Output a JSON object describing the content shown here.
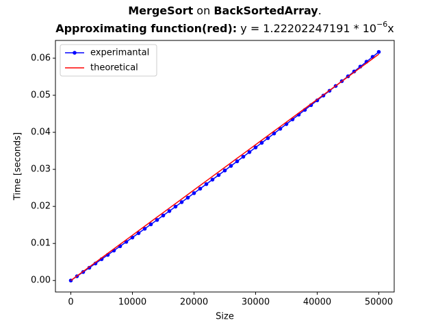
{
  "chart_data": {
    "type": "line",
    "title": [
      {
        "text": "MergeSort",
        "bold": true
      },
      {
        "text": " on "
      },
      {
        "text": "BackSortedArray",
        "bold": true
      },
      {
        "text": "."
      }
    ],
    "subtitle": [
      {
        "text": "Approximating function(red):",
        "bold": true
      },
      {
        "text": " y = 1.22202247191 * 10"
      },
      {
        "text": "−6",
        "sup": true
      },
      {
        "text": "x"
      }
    ],
    "xlabel": "Size",
    "ylabel": "Time [seconds]",
    "x": [
      0,
      1000,
      2000,
      3000,
      4000,
      5000,
      6000,
      7000,
      8000,
      9000,
      10000,
      11000,
      12000,
      13000,
      14000,
      15000,
      16000,
      17000,
      18000,
      19000,
      20000,
      21000,
      22000,
      23000,
      24000,
      25000,
      26000,
      27000,
      28000,
      29000,
      30000,
      31000,
      32000,
      33000,
      34000,
      35000,
      36000,
      37000,
      38000,
      39000,
      40000,
      41000,
      42000,
      43000,
      44000,
      45000,
      46000,
      47000,
      48000,
      49000,
      50000
    ],
    "series": [
      {
        "name": "experimantal",
        "color": "#0000ff",
        "marker": true,
        "values": [
          0,
          0.001144,
          0.002291,
          0.003443,
          0.004597,
          0.005756,
          0.006918,
          0.008084,
          0.009254,
          0.010427,
          0.011604,
          0.012785,
          0.013969,
          0.015157,
          0.016349,
          0.017544,
          0.018743,
          0.019946,
          0.021152,
          0.022362,
          0.023576,
          0.024793,
          0.026015,
          0.027239,
          0.028468,
          0.0297,
          0.030936,
          0.032175,
          0.033419,
          0.034665,
          0.035916,
          0.03717,
          0.038428,
          0.03969,
          0.040955,
          0.042224,
          0.043497,
          0.044773,
          0.046053,
          0.047337,
          0.048624,
          0.049915,
          0.05121,
          0.052508,
          0.05381,
          0.055116,
          0.056425,
          0.057739,
          0.059055,
          0.060376,
          0.0617
        ]
      },
      {
        "name": "theoretical",
        "color": "#ff0000",
        "marker": false,
        "values": [
          0,
          0.001222,
          0.002444,
          0.003666,
          0.004888,
          0.00611,
          0.007332,
          0.008554,
          0.009776,
          0.010998,
          0.01222,
          0.013442,
          0.014664,
          0.015886,
          0.017108,
          0.01833,
          0.019552,
          0.020774,
          0.021996,
          0.023218,
          0.02444,
          0.025662,
          0.026884,
          0.028106,
          0.029328,
          0.03055,
          0.031772,
          0.032994,
          0.034216,
          0.035438,
          0.03666,
          0.037882,
          0.039104,
          0.040326,
          0.041548,
          0.04277,
          0.043992,
          0.045214,
          0.046436,
          0.047658,
          0.04888,
          0.050102,
          0.051324,
          0.052546,
          0.053768,
          0.05499,
          0.056212,
          0.057434,
          0.058656,
          0.059878,
          0.0611
        ]
      }
    ],
    "xlim": [
      -2500,
      52500
    ],
    "xticks": [
      0,
      10000,
      20000,
      30000,
      40000,
      50000
    ],
    "ylim": [
      -0.0031,
      0.0648
    ],
    "yticks": [
      {
        "value": 0,
        "label": "0.00"
      },
      {
        "value": 0.01,
        "label": "0.01"
      },
      {
        "value": 0.02,
        "label": "0.02"
      },
      {
        "value": 0.03,
        "label": "0.03"
      },
      {
        "value": 0.04,
        "label": "0.04"
      },
      {
        "value": 0.05,
        "label": "0.05"
      },
      {
        "value": 0.06,
        "label": "0.06"
      }
    ],
    "legend": "upper left",
    "grid": false
  }
}
